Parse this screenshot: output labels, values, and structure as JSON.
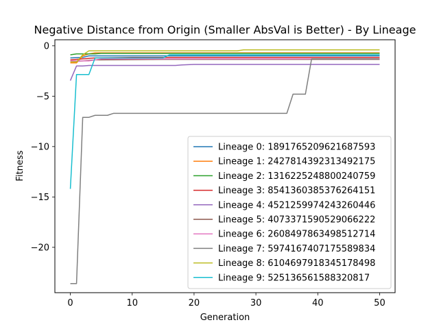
{
  "chart_data": {
    "type": "line",
    "title": "Negative Distance from Origin (Smaller AbsVal is Better) - By Lineage",
    "xlabel": "Generation",
    "ylabel": "Fitness",
    "xlim": [
      -2.5,
      52.5
    ],
    "ylim": [
      -24.5,
      0.6
    ],
    "xticks": [
      0,
      10,
      20,
      30,
      40,
      50
    ],
    "yticks": [
      0,
      -5,
      -10,
      -15,
      -20
    ],
    "grid": false,
    "legend_position": "lower-right",
    "series": [
      {
        "name": "Lineage 0: 1891765209621687593",
        "color": "#1f77b4",
        "points": [
          [
            0,
            -1.2
          ],
          [
            2,
            -1.15
          ],
          [
            3,
            -1.0
          ],
          [
            6,
            -1.0
          ],
          [
            50,
            -1.0
          ]
        ]
      },
      {
        "name": "Lineage 1: 2427814392313492175",
        "color": "#ff7f0e",
        "points": [
          [
            0,
            -1.7
          ],
          [
            1,
            -1.7
          ],
          [
            2,
            -1.0
          ],
          [
            3,
            -0.8
          ],
          [
            4,
            -0.7
          ],
          [
            50,
            -0.7
          ]
        ]
      },
      {
        "name": "Lineage 2: 1316225248800240759",
        "color": "#2ca02c",
        "points": [
          [
            0,
            -0.9
          ],
          [
            1,
            -0.8
          ],
          [
            4,
            -0.8
          ],
          [
            5,
            -0.75
          ],
          [
            50,
            -0.75
          ]
        ]
      },
      {
        "name": "Lineage 3: 8541360385376264151",
        "color": "#d62728",
        "points": [
          [
            0,
            -1.4
          ],
          [
            2,
            -1.3
          ],
          [
            4,
            -1.2
          ],
          [
            10,
            -1.15
          ],
          [
            50,
            -1.15
          ]
        ]
      },
      {
        "name": "Lineage 4: 4521259974243260446",
        "color": "#9467bd",
        "points": [
          [
            0,
            -3.45
          ],
          [
            1,
            -2.0
          ],
          [
            2,
            -2.0
          ],
          [
            3,
            -1.95
          ],
          [
            17,
            -1.95
          ],
          [
            18,
            -1.9
          ],
          [
            20,
            -1.85
          ],
          [
            50,
            -1.85
          ]
        ]
      },
      {
        "name": "Lineage 5: 4073371590529066222",
        "color": "#8c564b",
        "points": [
          [
            0,
            -1.55
          ],
          [
            2,
            -1.5
          ],
          [
            4,
            -1.4
          ],
          [
            15,
            -1.35
          ],
          [
            50,
            -1.35
          ]
        ]
      },
      {
        "name": "Lineage 6: 2608497863498512714",
        "color": "#e377c2",
        "points": [
          [
            0,
            -1.5
          ],
          [
            3,
            -1.5
          ],
          [
            5,
            -1.3
          ],
          [
            50,
            -1.3
          ]
        ]
      },
      {
        "name": "Lineage 7: 5974167407175589834",
        "color": "#7f7f7f",
        "points": [
          [
            0,
            -23.6
          ],
          [
            1,
            -23.6
          ],
          [
            2,
            -7.1
          ],
          [
            3,
            -7.1
          ],
          [
            4,
            -6.9
          ],
          [
            6,
            -6.9
          ],
          [
            7,
            -6.7
          ],
          [
            35,
            -6.7
          ],
          [
            36,
            -4.8
          ],
          [
            38,
            -4.8
          ],
          [
            39,
            -1.3
          ],
          [
            50,
            -1.3
          ]
        ]
      },
      {
        "name": "Lineage 8: 6104697918345178498",
        "color": "#bcbd22",
        "points": [
          [
            0,
            -1.6
          ],
          [
            1,
            -1.6
          ],
          [
            2,
            -0.9
          ],
          [
            3,
            -0.5
          ],
          [
            27,
            -0.5
          ],
          [
            28,
            -0.4
          ],
          [
            50,
            -0.4
          ]
        ]
      },
      {
        "name": "Lineage 9: 525136561588320817",
        "color": "#17becf",
        "points": [
          [
            0,
            -14.2
          ],
          [
            1,
            -2.85
          ],
          [
            3,
            -2.85
          ],
          [
            4,
            -1.2
          ],
          [
            15,
            -1.2
          ],
          [
            16,
            -0.9
          ],
          [
            50,
            -0.9
          ]
        ]
      }
    ]
  }
}
